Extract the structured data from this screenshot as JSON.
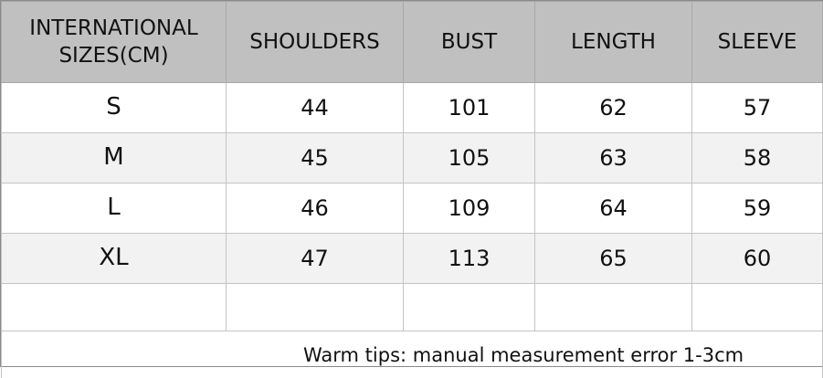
{
  "table": {
    "headers": [
      "INTERNATIONAL SIZES(CM)",
      "SHOULDERS",
      "BUST",
      "LENGTH",
      "SLEEVE"
    ],
    "rows": [
      [
        "S",
        "44",
        "101",
        "62",
        "57"
      ],
      [
        "M",
        "45",
        "105",
        "63",
        "58"
      ],
      [
        "L",
        "46",
        "109",
        "64",
        "59"
      ],
      [
        "XL",
        "47",
        "113",
        "65",
        "60"
      ]
    ]
  },
  "footer": {
    "note": "Warm tips: manual measurement error 1-3cm"
  },
  "colors": {
    "header_bg": "#c0c0c0",
    "alt_row_bg": "#f2f2f2",
    "border": "#c4c4c4"
  }
}
